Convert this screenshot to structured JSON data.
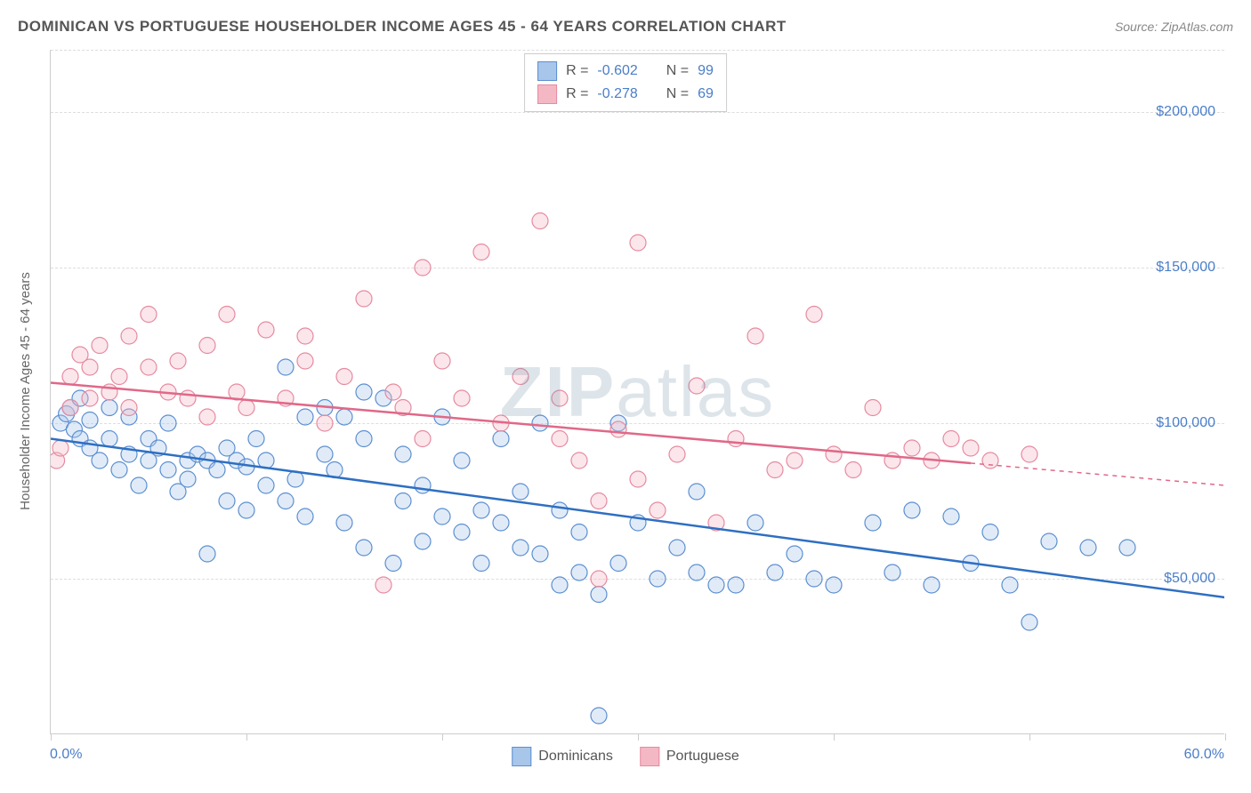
{
  "header": {
    "title": "DOMINICAN VS PORTUGUESE HOUSEHOLDER INCOME AGES 45 - 64 YEARS CORRELATION CHART",
    "source_label": "Source: ",
    "source_name": "ZipAtlas.com"
  },
  "watermark": {
    "prefix": "ZIP",
    "suffix": "atlas"
  },
  "chart": {
    "type": "scatter",
    "background_color": "#ffffff",
    "grid_color": "#dddddd",
    "border_color": "#cccccc",
    "axis_label_color": "#666666",
    "tick_label_color": "#4a7ec9",
    "y_axis_title": "Householder Income Ages 45 - 64 years",
    "xlim": [
      0,
      60
    ],
    "ylim": [
      0,
      220000
    ],
    "x_min_label": "0.0%",
    "x_max_label": "60.0%",
    "x_ticks": [
      0,
      10,
      20,
      30,
      40,
      50,
      60
    ],
    "y_ticks": [
      {
        "value": 50000,
        "label": "$50,000"
      },
      {
        "value": 100000,
        "label": "$100,000"
      },
      {
        "value": 150000,
        "label": "$150,000"
      },
      {
        "value": 200000,
        "label": "$200,000"
      }
    ],
    "marker_radius": 9,
    "marker_fill_opacity": 0.35,
    "marker_stroke_width": 1.2,
    "line_width": 2.5,
    "series": [
      {
        "name": "Dominicans",
        "color_fill": "#a8c6ea",
        "color_stroke": "#5b8fd0",
        "line_color": "#2e6fc2",
        "r_value": "-0.602",
        "n_value": "99",
        "trend": {
          "x1": 0,
          "y1": 95000,
          "x2": 60,
          "y2": 44000
        },
        "trend_dash_from_x": null,
        "points": [
          [
            0.5,
            100000
          ],
          [
            0.8,
            103000
          ],
          [
            1,
            105000
          ],
          [
            1.2,
            98000
          ],
          [
            1.5,
            95000
          ],
          [
            1.5,
            108000
          ],
          [
            2,
            92000
          ],
          [
            2,
            101000
          ],
          [
            2.5,
            88000
          ],
          [
            3,
            95000
          ],
          [
            3,
            105000
          ],
          [
            3.5,
            85000
          ],
          [
            4,
            90000
          ],
          [
            4,
            102000
          ],
          [
            4.5,
            80000
          ],
          [
            5,
            95000
          ],
          [
            5,
            88000
          ],
          [
            5.5,
            92000
          ],
          [
            6,
            85000
          ],
          [
            6,
            100000
          ],
          [
            6.5,
            78000
          ],
          [
            7,
            88000
          ],
          [
            7,
            82000
          ],
          [
            7.5,
            90000
          ],
          [
            8,
            58000
          ],
          [
            8,
            88000
          ],
          [
            8.5,
            85000
          ],
          [
            9,
            92000
          ],
          [
            9,
            75000
          ],
          [
            9.5,
            88000
          ],
          [
            10,
            86000
          ],
          [
            10,
            72000
          ],
          [
            10.5,
            95000
          ],
          [
            11,
            80000
          ],
          [
            11,
            88000
          ],
          [
            12,
            118000
          ],
          [
            12,
            75000
          ],
          [
            12.5,
            82000
          ],
          [
            13,
            102000
          ],
          [
            13,
            70000
          ],
          [
            14,
            105000
          ],
          [
            14,
            90000
          ],
          [
            14.5,
            85000
          ],
          [
            15,
            102000
          ],
          [
            15,
            68000
          ],
          [
            16,
            95000
          ],
          [
            16,
            110000
          ],
          [
            16,
            60000
          ],
          [
            17,
            108000
          ],
          [
            17.5,
            55000
          ],
          [
            18,
            75000
          ],
          [
            18,
            90000
          ],
          [
            19,
            80000
          ],
          [
            19,
            62000
          ],
          [
            20,
            102000
          ],
          [
            20,
            70000
          ],
          [
            21,
            65000
          ],
          [
            21,
            88000
          ],
          [
            22,
            72000
          ],
          [
            22,
            55000
          ],
          [
            23,
            95000
          ],
          [
            23,
            68000
          ],
          [
            24,
            78000
          ],
          [
            24,
            60000
          ],
          [
            25,
            100000
          ],
          [
            25,
            58000
          ],
          [
            26,
            48000
          ],
          [
            26,
            72000
          ],
          [
            27,
            65000
          ],
          [
            27,
            52000
          ],
          [
            28,
            45000
          ],
          [
            28,
            6000
          ],
          [
            29,
            100000
          ],
          [
            29,
            55000
          ],
          [
            30,
            68000
          ],
          [
            31,
            50000
          ],
          [
            32,
            60000
          ],
          [
            33,
            78000
          ],
          [
            33,
            52000
          ],
          [
            34,
            48000
          ],
          [
            35,
            48000
          ],
          [
            36,
            68000
          ],
          [
            37,
            52000
          ],
          [
            38,
            58000
          ],
          [
            39,
            50000
          ],
          [
            40,
            48000
          ],
          [
            42,
            68000
          ],
          [
            43,
            52000
          ],
          [
            44,
            72000
          ],
          [
            45,
            48000
          ],
          [
            46,
            70000
          ],
          [
            47,
            55000
          ],
          [
            48,
            65000
          ],
          [
            49,
            48000
          ],
          [
            50,
            36000
          ],
          [
            51,
            62000
          ],
          [
            53,
            60000
          ],
          [
            55,
            60000
          ]
        ]
      },
      {
        "name": "Portuguese",
        "color_fill": "#f4b8c5",
        "color_stroke": "#e68aa0",
        "line_color": "#e06888",
        "r_value": "-0.278",
        "n_value": "69",
        "trend": {
          "x1": 0,
          "y1": 113000,
          "x2": 60,
          "y2": 80000
        },
        "trend_dash_from_x": 47,
        "points": [
          [
            0.3,
            88000
          ],
          [
            0.5,
            92000
          ],
          [
            1,
            115000
          ],
          [
            1,
            105000
          ],
          [
            1.5,
            122000
          ],
          [
            2,
            108000
          ],
          [
            2,
            118000
          ],
          [
            2.5,
            125000
          ],
          [
            3,
            110000
          ],
          [
            3.5,
            115000
          ],
          [
            4,
            128000
          ],
          [
            4,
            105000
          ],
          [
            5,
            118000
          ],
          [
            5,
            135000
          ],
          [
            6,
            110000
          ],
          [
            6.5,
            120000
          ],
          [
            7,
            108000
          ],
          [
            8,
            125000
          ],
          [
            8,
            102000
          ],
          [
            9,
            135000
          ],
          [
            9.5,
            110000
          ],
          [
            10,
            105000
          ],
          [
            11,
            130000
          ],
          [
            12,
            108000
          ],
          [
            13,
            120000
          ],
          [
            13,
            128000
          ],
          [
            14,
            100000
          ],
          [
            15,
            115000
          ],
          [
            16,
            140000
          ],
          [
            17,
            48000
          ],
          [
            17.5,
            110000
          ],
          [
            18,
            105000
          ],
          [
            19,
            150000
          ],
          [
            19,
            95000
          ],
          [
            20,
            120000
          ],
          [
            21,
            108000
          ],
          [
            22,
            155000
          ],
          [
            23,
            100000
          ],
          [
            24,
            115000
          ],
          [
            25,
            165000
          ],
          [
            26,
            95000
          ],
          [
            26,
            108000
          ],
          [
            27,
            88000
          ],
          [
            28,
            50000
          ],
          [
            28,
            75000
          ],
          [
            29,
            98000
          ],
          [
            30,
            158000
          ],
          [
            30,
            82000
          ],
          [
            31,
            72000
          ],
          [
            32,
            90000
          ],
          [
            33,
            112000
          ],
          [
            34,
            68000
          ],
          [
            35,
            95000
          ],
          [
            36,
            128000
          ],
          [
            37,
            85000
          ],
          [
            38,
            88000
          ],
          [
            39,
            135000
          ],
          [
            40,
            90000
          ],
          [
            41,
            85000
          ],
          [
            42,
            105000
          ],
          [
            43,
            88000
          ],
          [
            44,
            92000
          ],
          [
            45,
            88000
          ],
          [
            46,
            95000
          ],
          [
            47,
            92000
          ],
          [
            48,
            88000
          ],
          [
            50,
            90000
          ]
        ]
      }
    ]
  },
  "legend_top": {
    "r_label": "R =",
    "n_label": "N ="
  },
  "legend_bottom": {
    "items": [
      "Dominicans",
      "Portuguese"
    ]
  }
}
